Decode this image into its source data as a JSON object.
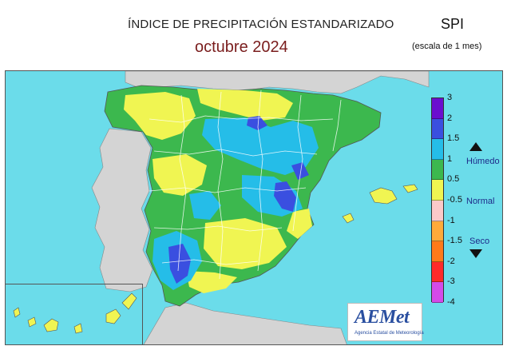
{
  "header": {
    "title": "ÍNDICE DE PRECIPITACIÓN ESTANDARIZADO",
    "subtitle": "octubre  2024",
    "index_label": "SPI",
    "scale_label": "(escala de 1 mes)"
  },
  "legend": {
    "ticks": [
      "3",
      "2",
      "1.5",
      "1",
      "0.5",
      "-0.5",
      "-1",
      "-1.5",
      "-2",
      "-3",
      "-4"
    ],
    "colors": [
      "#6a0dcf",
      "#3a4fe0",
      "#25bde8",
      "#3cb84e",
      "#f0f552",
      "#fcc9c9",
      "#ffaa3a",
      "#ff7a1a",
      "#ff2a2a",
      "#d44ae8"
    ],
    "humid_label": "Húmedo",
    "normal_label": "Normal",
    "dry_label": "Seco"
  },
  "map": {
    "sea_color": "#6bdcea",
    "land_other_color": "#d4d4d4",
    "boundary_color": "#ffffff"
  },
  "logo": {
    "name": "AEMet",
    "subtitle": "Agencia Estatal de Meteorología"
  }
}
